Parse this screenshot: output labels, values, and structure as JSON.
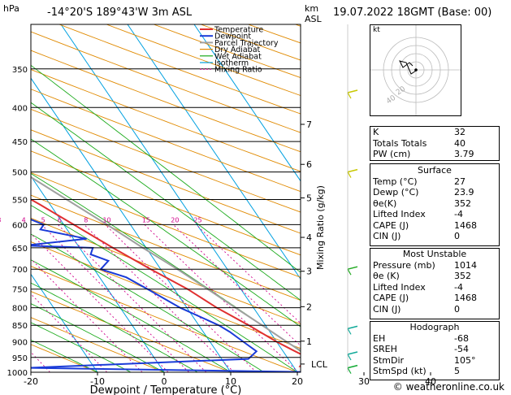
{
  "header": {
    "hpa_label": "hPa",
    "location": "-14°20'S  189°43'W  3m  ASL",
    "km_label": "km",
    "asl_label": "ASL",
    "datetime": "19.07.2022  18GMT  (Base: 00)"
  },
  "chart_data": {
    "type": "skew-t log-p",
    "xlabel": "Dewpoint / Temperature (°C)",
    "ylabel_right": "Mixing Ratio (g/kg)",
    "pressure_levels": [
      300,
      350,
      400,
      450,
      500,
      550,
      600,
      650,
      700,
      750,
      800,
      850,
      900,
      950,
      1000
    ],
    "pressure_labels": [
      "350",
      "400",
      "450",
      "500",
      "550",
      "600",
      "650",
      "700",
      "750",
      "800",
      "850",
      "900",
      "950",
      "1000"
    ],
    "temp_ticks": [
      -30,
      -20,
      -10,
      0,
      10,
      20,
      30,
      40
    ],
    "temp_tick_labels": [
      "-30",
      "-20",
      "-10",
      "0",
      "10",
      "20",
      "30",
      "40"
    ],
    "km_marks": [
      {
        "label": "7",
        "p": 424
      },
      {
        "label": "6",
        "p": 487
      },
      {
        "label": "5",
        "p": 547
      },
      {
        "label": "4",
        "p": 627
      },
      {
        "label": "3",
        "p": 705
      },
      {
        "label": "2",
        "p": 797
      },
      {
        "label": "1",
        "p": 898
      },
      {
        "label": "LCL",
        "p": 972
      }
    ],
    "mixing_ratio_labels": [
      "1",
      "2",
      "3",
      "4",
      "5",
      "6",
      "8",
      "10",
      "15",
      "20",
      "25"
    ],
    "mixing_ratio_values": [
      1,
      2,
      3,
      4,
      5,
      6,
      8,
      10,
      15,
      20,
      25
    ],
    "legend": [
      "Temperature",
      "Dewpoint",
      "Parcel Trajectory",
      "Dry Adiabat",
      "Wet Adiabat",
      "Isotherm",
      "Mixing Ratio"
    ],
    "colors": {
      "temperature": "#e03030",
      "dewpoint": "#1a3bd8",
      "parcel": "#a0a0a0",
      "dry_adiabat": "#e08a00",
      "wet_adiabat": "#1aaa1a",
      "isotherm": "#00a0e0",
      "mixing_ratio": "#d0008a"
    },
    "temperature": [
      {
        "p": 1000,
        "t": 26
      },
      {
        "p": 980,
        "t": 21
      },
      {
        "p": 965,
        "t": 22
      },
      {
        "p": 950,
        "t": 23
      },
      {
        "p": 925,
        "t": 21.5
      },
      {
        "p": 900,
        "t": 20
      },
      {
        "p": 850,
        "t": 17.5
      },
      {
        "p": 800,
        "t": 14.5
      },
      {
        "p": 750,
        "t": 12
      },
      {
        "p": 700,
        "t": 8.5
      },
      {
        "p": 650,
        "t": 5
      },
      {
        "p": 600,
        "t": 1.5
      },
      {
        "p": 560,
        "t": -1.5
      },
      {
        "p": 520,
        "t": -5
      },
      {
        "p": 500,
        "t": -5.5
      },
      {
        "p": 450,
        "t": -11
      },
      {
        "p": 400,
        "t": -19
      },
      {
        "p": 375,
        "t": -21.5
      }
    ],
    "dewpoint": [
      {
        "p": 1000,
        "t": 23.9
      },
      {
        "p": 985,
        "t": -20
      },
      {
        "p": 955,
        "t": 14
      },
      {
        "p": 930,
        "t": 16
      },
      {
        "p": 900,
        "t": 15
      },
      {
        "p": 870,
        "t": 14
      },
      {
        "p": 850,
        "t": 13
      },
      {
        "p": 800,
        "t": 9
      },
      {
        "p": 750,
        "t": 6
      },
      {
        "p": 720,
        "t": 4
      },
      {
        "p": 700,
        "t": 1
      },
      {
        "p": 680,
        "t": 3
      },
      {
        "p": 665,
        "t": 1
      },
      {
        "p": 650,
        "t": 2
      },
      {
        "p": 645,
        "t": -8
      },
      {
        "p": 630,
        "t": 2
      },
      {
        "p": 610,
        "t": -4
      },
      {
        "p": 600,
        "t": -3
      },
      {
        "p": 585,
        "t": -5
      },
      {
        "p": 565,
        "t": -10
      },
      {
        "p": 555,
        "t": -28
      },
      {
        "p": 530,
        "t": -38
      },
      {
        "p": 505,
        "t": -32
      },
      {
        "p": 480,
        "t": -50
      },
      {
        "p": 440,
        "t": -30
      },
      {
        "p": 405,
        "t": -40
      },
      {
        "p": 390,
        "t": -35
      },
      {
        "p": 340,
        "t": -40
      },
      {
        "p": 300,
        "t": -45
      }
    ],
    "parcel": [
      {
        "p": 1000,
        "t": 27
      },
      {
        "p": 960,
        "t": 24
      },
      {
        "p": 900,
        "t": 21.5
      },
      {
        "p": 850,
        "t": 19.5
      },
      {
        "p": 800,
        "t": 17.3
      },
      {
        "p": 750,
        "t": 15
      },
      {
        "p": 700,
        "t": 12.5
      },
      {
        "p": 650,
        "t": 9.5
      },
      {
        "p": 600,
        "t": 6.5
      },
      {
        "p": 550,
        "t": 3
      },
      {
        "p": 500,
        "t": -0.8
      },
      {
        "p": 450,
        "t": -5.5
      },
      {
        "p": 400,
        "t": -11
      },
      {
        "p": 350,
        "t": -18
      },
      {
        "p": 300,
        "t": -26
      }
    ]
  },
  "hodograph": {
    "label": "kt",
    "ring_labels": [
      "40",
      "20"
    ]
  },
  "indices": {
    "top": [
      {
        "name": "K",
        "value": "32"
      },
      {
        "name": "Totals Totals",
        "value": "40"
      },
      {
        "name": "PW (cm)",
        "value": "3.79"
      }
    ],
    "surface_title": "Surface",
    "surface": [
      {
        "name": "Temp (°C)",
        "value": "27"
      },
      {
        "name": "Dewp (°C)",
        "value": "23.9"
      },
      {
        "name": "θe(K)",
        "value": "352"
      },
      {
        "name": "Lifted Index",
        "value": "-4"
      },
      {
        "name": "CAPE (J)",
        "value": "1468"
      },
      {
        "name": "CIN (J)",
        "value": "0"
      }
    ],
    "unstable_title": "Most Unstable",
    "unstable": [
      {
        "name": "Pressure (mb)",
        "value": "1014"
      },
      {
        "name": "θe (K)",
        "value": "352"
      },
      {
        "name": "Lifted Index",
        "value": "-4"
      },
      {
        "name": "CAPE (J)",
        "value": "1468"
      },
      {
        "name": "CIN (J)",
        "value": "0"
      }
    ],
    "hodo_title": "Hodograph",
    "hodo": [
      {
        "name": "EH",
        "value": "-68"
      },
      {
        "name": "SREH",
        "value": "-54"
      },
      {
        "name": "StmDir",
        "value": "105°"
      },
      {
        "name": "StmSpd (kt)",
        "value": "5"
      }
    ]
  },
  "footer": {
    "copyright": "© weatheronline.co.uk"
  }
}
